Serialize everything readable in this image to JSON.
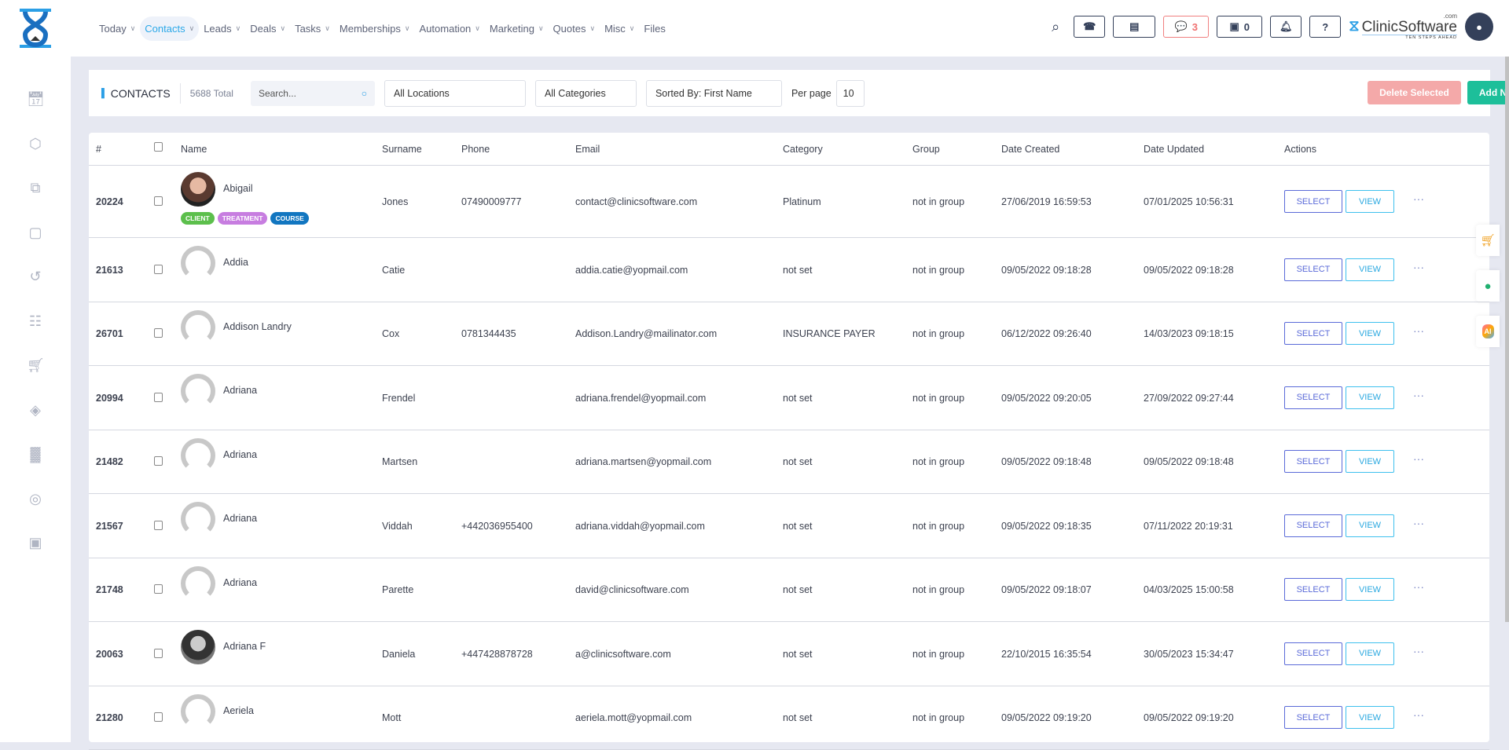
{
  "nav": [
    "Today",
    "Contacts",
    "Leads",
    "Deals",
    "Tasks",
    "Memberships",
    "Automation",
    "Marketing",
    "Quotes",
    "Misc",
    "Files"
  ],
  "nav_active": "Contacts",
  "header": {
    "chat_count": "3",
    "store_count": "0",
    "brand": "ClinicSoftware",
    "brand_suffix": ".com",
    "brand_tagline": "TEN STEPS AHEAD"
  },
  "sidebar_icons": [
    "calendar-icon",
    "box-icon",
    "copy-icon",
    "basket-icon",
    "history-icon",
    "gift-icon",
    "cart-icon",
    "tag-icon",
    "report-icon",
    "user-circle-icon",
    "lock-icon"
  ],
  "toolbar": {
    "title": "CONTACTS",
    "total": "5688 Total",
    "search_placeholder": "Search...",
    "location": "All Locations",
    "category": "All Categories",
    "sort": "Sorted By: First Name",
    "per_page_label": "Per page",
    "per_page": "10",
    "delete_label": "Delete Selected",
    "add_label": "Add New"
  },
  "columns": [
    "#",
    "Name",
    "Surname",
    "Phone",
    "Email",
    "Category",
    "Group",
    "Date Created",
    "Date Updated",
    "Actions"
  ],
  "action_labels": {
    "select": "SELECT",
    "view": "VIEW",
    "more": "···"
  },
  "tags": [
    {
      "label": "CLIENT",
      "color": "#5cbf4c"
    },
    {
      "label": "TREATMENT",
      "color": "#c77de0"
    },
    {
      "label": "COURSE",
      "color": "#1276c0"
    }
  ],
  "rows": [
    {
      "id": "20224",
      "name": "Abigail",
      "surname": "Jones",
      "phone": "07490009777",
      "email": "contact@clinicsoftware.com",
      "category": "Platinum",
      "group": "not in group",
      "created": "27/06/2019 16:59:53",
      "updated": "07/01/2025 10:56:31",
      "photo": "img1"
    },
    {
      "id": "21613",
      "name": "Addia",
      "surname": "Catie",
      "phone": "",
      "email": "addia.catie@yopmail.com",
      "category": "not set",
      "group": "not in group",
      "created": "09/05/2022 09:18:28",
      "updated": "09/05/2022 09:18:28",
      "photo": "def"
    },
    {
      "id": "26701",
      "name": "Addison Landry",
      "surname": "Cox",
      "phone": "0781344435",
      "email": "Addison.Landry@mailinator.com",
      "category": "INSURANCE PAYER",
      "group": "not in group",
      "created": "06/12/2022 09:26:40",
      "updated": "14/03/2023 09:18:15",
      "photo": "def"
    },
    {
      "id": "20994",
      "name": "Adriana",
      "surname": "Frendel",
      "phone": "",
      "email": "adriana.frendel@yopmail.com",
      "category": "not set",
      "group": "not in group",
      "created": "09/05/2022 09:20:05",
      "updated": "27/09/2022 09:27:44",
      "photo": "def"
    },
    {
      "id": "21482",
      "name": "Adriana",
      "surname": "Martsen",
      "phone": "",
      "email": "adriana.martsen@yopmail.com",
      "category": "not set",
      "group": "not in group",
      "created": "09/05/2022 09:18:48",
      "updated": "09/05/2022 09:18:48",
      "photo": "def"
    },
    {
      "id": "21567",
      "name": "Adriana",
      "surname": "Viddah",
      "phone": "+442036955400",
      "email": "adriana.viddah@yopmail.com",
      "category": "not set",
      "group": "not in group",
      "created": "09/05/2022 09:18:35",
      "updated": "07/11/2022 20:19:31",
      "photo": "def"
    },
    {
      "id": "21748",
      "name": "Adriana",
      "surname": "Parette",
      "phone": "",
      "email": "david@clinicsoftware.com",
      "category": "not set",
      "group": "not in group",
      "created": "09/05/2022 09:18:07",
      "updated": "04/03/2025 15:00:58",
      "photo": "def"
    },
    {
      "id": "20063",
      "name": "Adriana F",
      "surname": "Daniela",
      "phone": "+447428878728",
      "email": "a@clinicsoftware.com",
      "category": "not set",
      "group": "not in group",
      "created": "22/10/2015 16:35:54",
      "updated": "30/05/2023 15:34:47",
      "photo": "img2"
    },
    {
      "id": "21280",
      "name": "Aeriela",
      "surname": "Mott",
      "phone": "",
      "email": "aeriela.mott@yopmail.com",
      "category": "not set",
      "group": "not in group",
      "created": "09/05/2022 09:19:20",
      "updated": "09/05/2022 09:19:20",
      "photo": "def"
    }
  ],
  "float_icons": [
    "cart-icon",
    "whatsapp-icon",
    "ai-icon"
  ]
}
